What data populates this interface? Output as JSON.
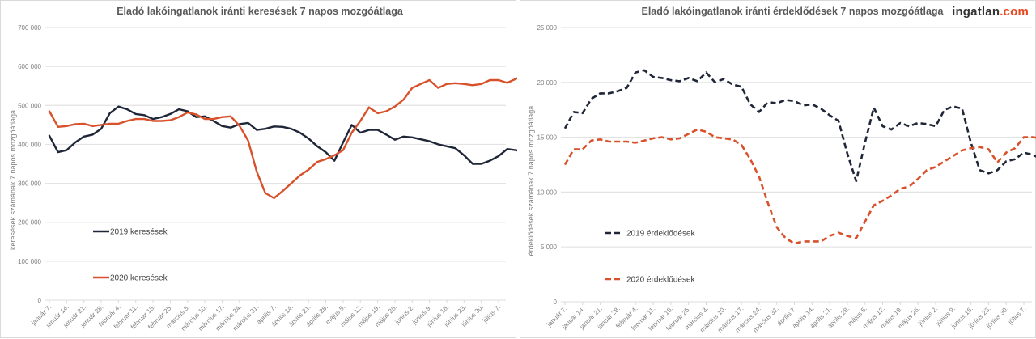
{
  "brand": {
    "name": "ingatlan",
    "suffix": ".com",
    "accent": "#e8461e"
  },
  "colors": {
    "series2019": "#1f2638",
    "series2020": "#d9512a"
  },
  "chart_data": [
    {
      "type": "line",
      "title": "Eladó lakóingatlanok iránti keresések 7 napos mozgóátlaga",
      "xlabel": "",
      "ylabel": "keresések számának 7 napos mozgóátlaga",
      "ylim": [
        0,
        700000
      ],
      "yticks": [
        0,
        100000,
        200000,
        300000,
        400000,
        500000,
        600000,
        700000
      ],
      "ytick_labels": [
        "0",
        "100 000",
        "200 000",
        "300 000",
        "400 000",
        "500 000",
        "600 000",
        "700 000"
      ],
      "grid": true,
      "line_style": "solid",
      "legend_position": "lower-left",
      "categories": [
        "január 7.",
        "január 14.",
        "január 21.",
        "január 28.",
        "február 4.",
        "február 11.",
        "február 18.",
        "február 25.",
        "március 3.",
        "március 10.",
        "március 17.",
        "március 24.",
        "március 31.",
        "április 7.",
        "április 14.",
        "április 21.",
        "április 28.",
        "május 5.",
        "május 12.",
        "május 19.",
        "május 26.",
        "június 2.",
        "június 9.",
        "június 16.",
        "június 23.",
        "június 30.",
        "július 7."
      ],
      "x_step_weeks": 0.5,
      "series": [
        {
          "name": "2019 keresések",
          "values": [
            422000,
            380000,
            385000,
            405000,
            420000,
            425000,
            440000,
            480000,
            497000,
            490000,
            478000,
            475000,
            465000,
            470000,
            478000,
            490000,
            485000,
            470000,
            472000,
            460000,
            447000,
            443000,
            452000,
            455000,
            437000,
            440000,
            446000,
            445000,
            440000,
            430000,
            415000,
            395000,
            380000,
            358000,
            405000,
            450000,
            430000,
            437000,
            437000,
            425000,
            412000,
            420000,
            418000,
            413000,
            408000,
            400000,
            395000,
            390000,
            372000,
            350000,
            350000,
            358000,
            370000,
            388000,
            385000,
            380000,
            390000,
            395000
          ]
        },
        {
          "name": "2020 keresések",
          "values": [
            485000,
            445000,
            447000,
            452000,
            453000,
            447000,
            450000,
            453000,
            453000,
            460000,
            465000,
            465000,
            460000,
            460000,
            462000,
            470000,
            482000,
            477000,
            465000,
            465000,
            470000,
            472000,
            448000,
            410000,
            330000,
            275000,
            262000,
            280000,
            300000,
            320000,
            335000,
            355000,
            362000,
            372000,
            385000,
            430000,
            460000,
            495000,
            480000,
            485000,
            497000,
            515000,
            545000,
            555000,
            565000,
            545000,
            555000,
            557000,
            555000,
            552000,
            555000,
            565000,
            565000,
            558000,
            568000,
            578000,
            560000,
            565000,
            555000,
            555000,
            550000,
            552000,
            543000
          ]
        }
      ]
    },
    {
      "type": "line",
      "title": "Eladó lakóingatlanok iránti érdeklődések 7 napos mozgóátlaga",
      "xlabel": "",
      "ylabel": "érdeklődések számának 7 napos mozgóátlaga",
      "ylim": [
        0,
        25000
      ],
      "yticks": [
        0,
        5000,
        10000,
        15000,
        20000,
        25000
      ],
      "ytick_labels": [
        "0",
        "5 000",
        "10 000",
        "15 000",
        "20 000",
        "25 000"
      ],
      "grid": true,
      "line_style": "dashed",
      "legend_position": "lower-left",
      "categories": [
        "január 7.",
        "január 14.",
        "január 21.",
        "január 28.",
        "február 4.",
        "február 11.",
        "február 18.",
        "február 25.",
        "március 3.",
        "március 10.",
        "március 17.",
        "március 24.",
        "március 31.",
        "április 7.",
        "április 14.",
        "április 21.",
        "április 28.",
        "május 5.",
        "május 12.",
        "május 19.",
        "május 26.",
        "június 2.",
        "június 9.",
        "június 16.",
        "június 23.",
        "június 30.",
        "július 7."
      ],
      "x_step_weeks": 0.5,
      "series": [
        {
          "name": "2019 érdeklődések",
          "values": [
            15800,
            17300,
            17200,
            18500,
            19000,
            19000,
            19200,
            19500,
            20900,
            21100,
            20500,
            20400,
            20200,
            20100,
            20400,
            20100,
            20900,
            20000,
            20300,
            19800,
            19600,
            18000,
            17300,
            18200,
            18100,
            18400,
            18300,
            17900,
            18000,
            17600,
            17000,
            16500,
            13500,
            11000,
            14500,
            17700,
            16000,
            15700,
            16300,
            16000,
            16300,
            16200,
            16000,
            17500,
            17800,
            17600,
            14500,
            12000,
            11700,
            12000,
            12800,
            13000,
            13600,
            13400,
            13000,
            12800,
            13100,
            13500
          ]
        },
        {
          "name": "2020 érdeklődések",
          "values": [
            12500,
            13900,
            13900,
            14700,
            14800,
            14600,
            14600,
            14600,
            14500,
            14700,
            14900,
            15000,
            14800,
            14900,
            15300,
            15700,
            15500,
            15000,
            14900,
            14800,
            14300,
            13000,
            11400,
            9000,
            6800,
            5800,
            5300,
            5500,
            5500,
            5500,
            6000,
            6300,
            6000,
            5800,
            7300,
            8800,
            9200,
            9700,
            10300,
            10500,
            11200,
            12000,
            12300,
            12800,
            13300,
            13800,
            14000,
            14100,
            13900,
            12700,
            13600,
            14000,
            15000,
            15000,
            14900,
            14700,
            15100,
            14700
          ]
        }
      ]
    }
  ]
}
